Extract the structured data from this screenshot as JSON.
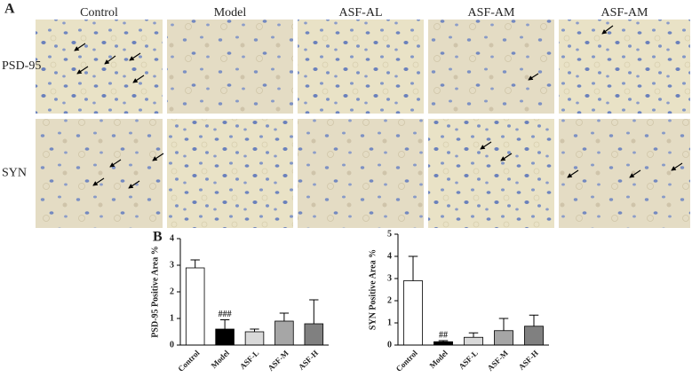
{
  "panel_a": {
    "label": "A",
    "columns": [
      "Control",
      "Model",
      "ASF-AL",
      "ASF-AM",
      "ASF-AM"
    ],
    "rows": [
      "PSD-95",
      "SYN"
    ]
  },
  "panel_b_label": "B",
  "chart_data": [
    {
      "type": "bar",
      "y_label": "PSD-95 Positive Area %",
      "categories": [
        "Control",
        "Model",
        "ASF-L",
        "ASF-M",
        "ASF-H"
      ],
      "values": [
        2.9,
        0.6,
        0.5,
        0.9,
        0.8
      ],
      "errors": [
        0.3,
        0.35,
        0.1,
        0.3,
        0.9
      ],
      "annotations": [
        null,
        "###",
        null,
        null,
        null
      ],
      "colors": [
        "#ffffff",
        "#000000",
        "#d9d9d9",
        "#a6a6a6",
        "#808080"
      ],
      "ylim": [
        0,
        4
      ],
      "yticks": [
        0,
        1,
        2,
        3,
        4
      ]
    },
    {
      "type": "bar",
      "y_label": "SYN Positive Area %",
      "categories": [
        "Control",
        "Model",
        "ASF-L",
        "ASF-M",
        "ASF-H"
      ],
      "values": [
        2.9,
        0.15,
        0.35,
        0.65,
        0.85
      ],
      "errors": [
        1.1,
        0.05,
        0.2,
        0.55,
        0.5
      ],
      "annotations": [
        null,
        "##",
        null,
        null,
        null
      ],
      "colors": [
        "#ffffff",
        "#000000",
        "#d9d9d9",
        "#a6a6a6",
        "#808080"
      ],
      "ylim": [
        0,
        5
      ],
      "yticks": [
        0,
        1,
        2,
        3,
        4,
        5
      ]
    }
  ]
}
